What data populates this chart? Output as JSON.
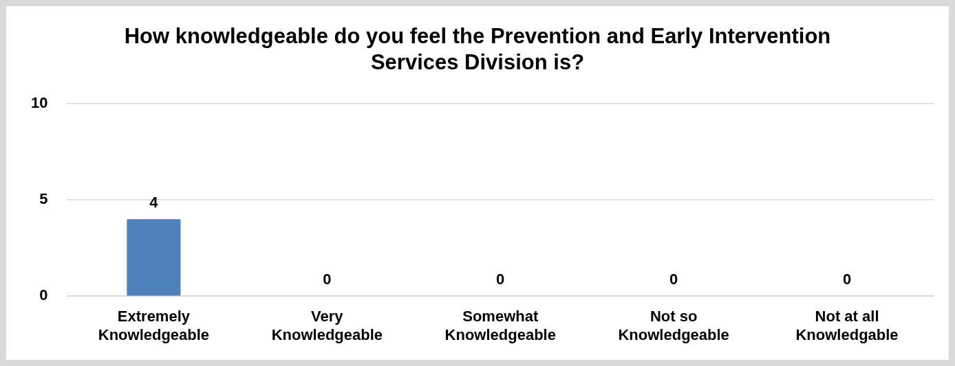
{
  "chart_data": {
    "type": "bar",
    "title": "How knowledgeable do you feel the Prevention and Early Intervention Services Division is?",
    "categories": [
      "Extremely Knowledgeable",
      "Very Knowledgeable",
      "Somewhat Knowledgeable",
      "Not so Knowledgeable",
      "Not at all Knowledgable"
    ],
    "values": [
      4,
      0,
      0,
      0,
      0
    ],
    "color": "#4f81bd",
    "ylim": [
      0,
      10
    ],
    "yticks": [
      0,
      5,
      10
    ],
    "grid": "y",
    "data_labels": true
  }
}
